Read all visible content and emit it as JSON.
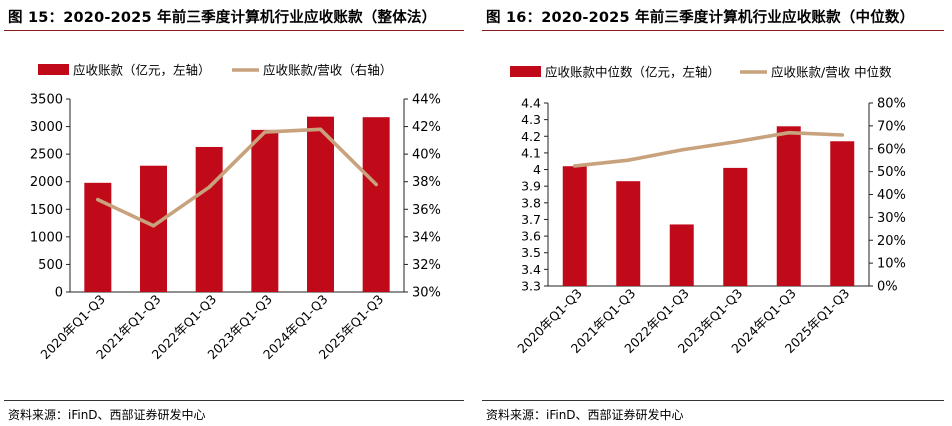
{
  "chart_data": [
    {
      "type": "bar",
      "title": "图 15：2020-2025 年前三季度计算机行业应收账款（整体法）",
      "categories": [
        "2020年Q1-Q3",
        "2021年Q1-Q3",
        "2022年Q1-Q3",
        "2023年Q1-Q3",
        "2024年Q1-Q3",
        "2025年Q1-Q3"
      ],
      "series": [
        {
          "name": "应收账款（亿元，左轴）",
          "kind": "bar",
          "axis": "left",
          "color": "#c00a1a",
          "values": [
            1980,
            2290,
            2630,
            2940,
            3180,
            3170
          ]
        },
        {
          "name": "应收账款/营收（右轴）",
          "kind": "line",
          "axis": "right",
          "color": "#c8a27c",
          "values": [
            36.7,
            34.8,
            37.6,
            41.6,
            41.8,
            37.8
          ]
        }
      ],
      "left_axis": {
        "min": 0,
        "max": 3500,
        "ticks": [
          0,
          500,
          1000,
          1500,
          2000,
          2500,
          3000,
          3500
        ],
        "labels": [
          "0",
          "500",
          "1000",
          "1500",
          "2000",
          "2500",
          "3000",
          "3500"
        ]
      },
      "right_axis": {
        "min": 30,
        "max": 44,
        "ticks": [
          30,
          32,
          34,
          36,
          38,
          40,
          42,
          44
        ],
        "labels": [
          "30%",
          "32%",
          "34%",
          "36%",
          "38%",
          "40%",
          "42%",
          "44%"
        ]
      },
      "source": "资料来源：iFinD、西部证券研发中心"
    },
    {
      "type": "bar",
      "title": "图 16：2020-2025 年前三季度计算机行业应收账款（中位数）",
      "categories": [
        "2020年Q1-Q3",
        "2021年Q1-Q3",
        "2022年Q1-Q3",
        "2023年Q1-Q3",
        "2024年Q1-Q3",
        "2025年Q1-Q3"
      ],
      "series": [
        {
          "name": "应收账款中位数（亿元，左轴）",
          "kind": "bar",
          "axis": "left",
          "color": "#c00a1a",
          "values": [
            4.02,
            3.93,
            3.67,
            4.01,
            4.26,
            4.17
          ]
        },
        {
          "name": "应收账款/营收 中位数",
          "kind": "line",
          "axis": "right",
          "color": "#c8a27c",
          "values": [
            52.5,
            55,
            59.5,
            63,
            67,
            66
          ]
        }
      ],
      "left_axis": {
        "min": 3.3,
        "max": 4.4,
        "ticks": [
          3.3,
          3.4,
          3.5,
          3.6,
          3.7,
          3.8,
          3.9,
          4.0,
          4.1,
          4.2,
          4.3,
          4.4
        ],
        "labels": [
          "3.3",
          "3.4",
          "3.5",
          "3.6",
          "3.7",
          "3.8",
          "3.9",
          "4",
          "4.1",
          "4.2",
          "4.3",
          "4.4"
        ]
      },
      "right_axis": {
        "min": 0,
        "max": 80,
        "ticks": [
          0,
          10,
          20,
          30,
          40,
          50,
          60,
          70,
          80
        ],
        "labels": [
          "0%",
          "10%",
          "20%",
          "30%",
          "40%",
          "50%",
          "60%",
          "70%",
          "80%"
        ]
      },
      "source": "资料来源：iFinD、西部证券研发中心"
    }
  ]
}
